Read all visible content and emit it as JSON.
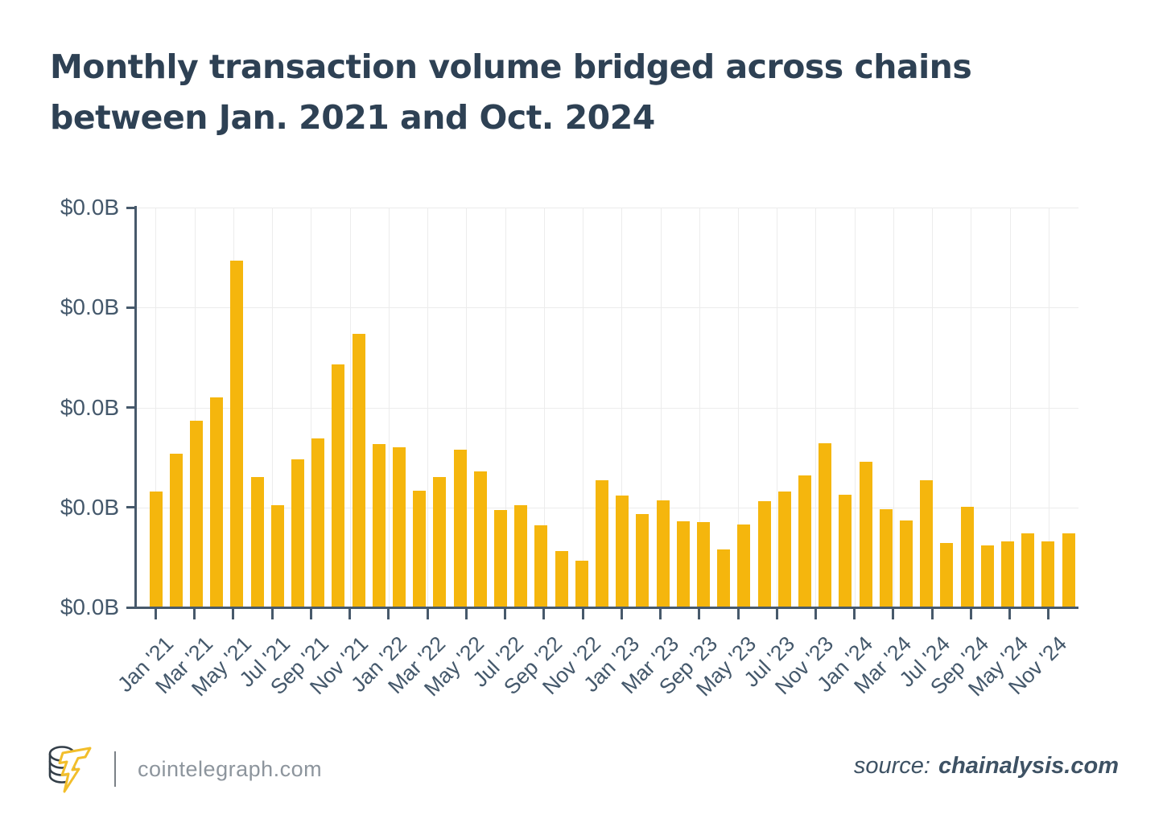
{
  "page": {
    "background": "#FFFFFF"
  },
  "header": {
    "title_line1": "Monthly transaction volume bridged across chains",
    "title_line2": "between Jan. 2021 and Oct. 2024"
  },
  "chart_data": {
    "type": "bar",
    "title": "Monthly transaction volume bridged across chains between Jan. 2021 and Oct. 2024",
    "x_tick_labels": [
      "Jan '21",
      "Mar '21",
      "May '21",
      "Jul '21",
      "Sep '21",
      "Nov '21",
      "Jan '22",
      "Mar '22",
      "May '22",
      "Jul '22",
      "Sep '22",
      "Nov '22",
      "Jan '23",
      "Mar '23",
      "Sep '23",
      "May '23",
      "Jul '23",
      "Nov '23",
      "Jan '24",
      "Mar '24",
      "Jul '24",
      "Sep '24",
      "May '24",
      "Nov '24"
    ],
    "y_tick_labels": [
      "$0.0B",
      "$0.0B",
      "$0.0B",
      "$0.0B",
      "$0.0B"
    ],
    "n_bars": 46,
    "values": [
      1.16,
      1.54,
      1.87,
      2.1,
      3.47,
      1.3,
      1.02,
      1.48,
      1.69,
      2.43,
      2.74,
      1.63,
      1.6,
      1.17,
      1.3,
      1.58,
      1.36,
      0.97,
      1.02,
      0.82,
      0.56,
      0.47,
      1.27,
      1.12,
      0.93,
      1.07,
      0.86,
      0.85,
      0.58,
      0.83,
      1.06,
      1.16,
      1.32,
      1.64,
      1.13,
      1.46,
      0.98,
      0.87,
      1.27,
      0.64,
      1.01,
      0.62,
      0.66,
      0.74,
      0.66,
      0.74
    ],
    "value_unit": "relative height in y-gridline intervals (all y-axis tick labels rendered as $0.0B)",
    "ylim": [
      0,
      4
    ],
    "grid": true,
    "legend": "none",
    "bar_color": "#F5B60D"
  },
  "footer": {
    "logo_icon": "cointelegraph-coin-stack-lightning-logo",
    "brand": "cointelegraph.com",
    "source_label": "source:",
    "source_value": "chainalysis.com"
  },
  "colors": {
    "bar": "#F5B60D",
    "title_text": "#2E4154",
    "axis": "#47596B",
    "axis_label": "#44586B",
    "gridline": "#ECECEC",
    "footer_text": "#8D959D",
    "source_text": "#3E5264",
    "logo_yellow": "#F2BE2B",
    "logo_dark": "#333E48"
  }
}
